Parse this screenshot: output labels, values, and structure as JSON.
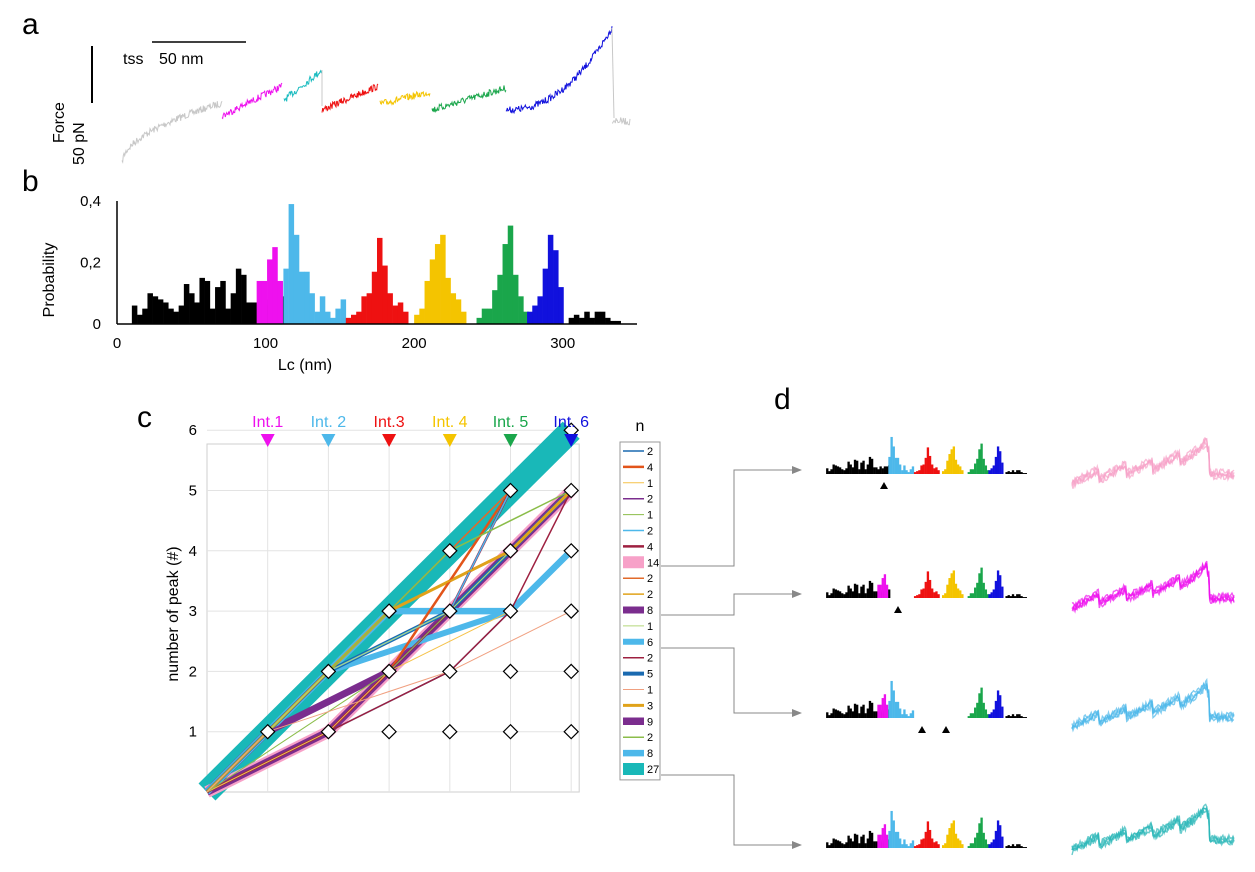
{
  "panel_labels": {
    "a": "a",
    "b": "b",
    "c": "c",
    "d": "d"
  },
  "colors": {
    "int1": "#ee11ee",
    "int2": "#4db8ea",
    "int3": "#ee1111",
    "int4": "#f4c400",
    "int5": "#1aa64b",
    "int6": "#1111dd",
    "baseline": "#000000",
    "trace_gray": "#c8c8c8",
    "teal": "#19b8b8",
    "teal_trace": "#1bbcc0",
    "pink": "#f7a1c8",
    "purple": "#7b2d8e",
    "dark_blue": "#1a6ab0",
    "gold": "#e0a21a",
    "trace_cyan": "#2bb6b8"
  },
  "panel_a": {
    "tss_label": "tss",
    "scale_x_label": "50 nm",
    "scale_y_label": "50 pN",
    "ylabel": "Force"
  },
  "chart_data": [
    {
      "type": "bar",
      "panel": "b",
      "xlabel": "Lc (nm)",
      "ylabel": "Probability",
      "xlim": [
        0,
        350
      ],
      "ylim": [
        0,
        0.4
      ],
      "xticks": [
        "0",
        "100",
        "200",
        "300"
      ],
      "yticks": [
        "0",
        "0,2",
        "0,4"
      ],
      "bin_width": 3.5,
      "segments": [
        {
          "color_key": "baseline",
          "start": 10,
          "values": [
            0.06,
            0.03,
            0.05,
            0.1,
            0.09,
            0.08,
            0.07,
            0.05,
            0.04,
            0.06,
            0.13,
            0.1,
            0.07,
            0.15,
            0.14,
            0.05,
            0.12,
            0.14,
            0.05,
            0.1,
            0.18,
            0.16,
            0.07,
            0.07,
            0.05,
            0.08,
            0.06,
            0.08,
            0.08,
            0.09
          ]
        },
        {
          "color_key": "int1",
          "start": 94,
          "values": [
            0.14,
            0.14,
            0.21,
            0.25,
            0.14
          ]
        },
        {
          "color_key": "int2",
          "start": 112,
          "values": [
            0.18,
            0.39,
            0.29,
            0.17,
            0.17,
            0.1,
            0.04,
            0.09,
            0.04,
            0.02,
            0.05,
            0.08
          ]
        },
        {
          "color_key": "int3",
          "start": 154,
          "values": [
            0.02,
            0.03,
            0.04,
            0.09,
            0.1,
            0.17,
            0.28,
            0.19,
            0.1,
            0.06,
            0.07,
            0.04
          ]
        },
        {
          "color_key": "int4",
          "start": 200,
          "values": [
            0.03,
            0.05,
            0.14,
            0.21,
            0.26,
            0.29,
            0.15,
            0.1,
            0.08,
            0.04
          ]
        },
        {
          "color_key": "int5",
          "start": 242,
          "values": [
            0.02,
            0.05,
            0.05,
            0.11,
            0.16,
            0.26,
            0.32,
            0.16,
            0.09,
            0.04
          ]
        },
        {
          "color_key": "int6",
          "start": 276,
          "values": [
            0.04,
            0.06,
            0.09,
            0.18,
            0.29,
            0.24,
            0.12
          ]
        },
        {
          "color_key": "baseline",
          "start": 304,
          "values": [
            0.02,
            0.03,
            0.02,
            0.04,
            0.02,
            0.04,
            0.04,
            0.02,
            0.01,
            0.01
          ]
        }
      ]
    },
    {
      "type": "line",
      "panel": "c",
      "ylabel": "number of peak (#)",
      "ylim": [
        0,
        6
      ],
      "yticks": [
        "1",
        "2",
        "3",
        "4",
        "5",
        "6"
      ],
      "columns": [
        "Int.1",
        "Int. 2",
        "Int.3",
        "Int. 4",
        "Int. 5",
        "Int. 6"
      ],
      "legend_title": "n",
      "series": [
        {
          "name": "2",
          "color": "#1a6ab0",
          "width": 1.5,
          "points": [
            [
              0,
              0
            ],
            [
              2,
              1
            ],
            [
              4,
              2
            ],
            [
              5,
              3
            ]
          ]
        },
        {
          "name": "4",
          "color": "#e2541a",
          "width": 2.5,
          "points": [
            [
              0,
              0
            ],
            [
              2,
              1
            ],
            [
              3,
              2
            ],
            [
              5,
              5
            ]
          ]
        },
        {
          "name": "1",
          "color": "#f5c24a",
          "width": 1,
          "points": [
            [
              0,
              0
            ],
            [
              2,
              1
            ],
            [
              3,
              2
            ],
            [
              5,
              3
            ]
          ]
        },
        {
          "name": "2",
          "color": "#7b2d8e",
          "width": 1.5,
          "points": [
            [
              0,
              0
            ],
            [
              1,
              1
            ],
            [
              3,
              2
            ],
            [
              4,
              3
            ],
            [
              5,
              5
            ]
          ]
        },
        {
          "name": "1",
          "color": "#8bbd4a",
          "width": 1,
          "points": [
            [
              0,
              0
            ],
            [
              3,
              2
            ],
            [
              4,
              3
            ],
            [
              5,
              4
            ]
          ]
        },
        {
          "name": "2",
          "color": "#4db8ea",
          "width": 1.5,
          "points": [
            [
              0,
              0
            ],
            [
              1,
              1
            ],
            [
              2,
              2
            ],
            [
              4,
              3
            ],
            [
              5,
              5
            ]
          ]
        },
        {
          "name": "4",
          "color": "#9e2040",
          "width": 2.5,
          "points": [
            [
              0,
              0
            ],
            [
              2,
              1
            ],
            [
              3,
              2
            ],
            [
              4,
              3
            ],
            [
              5,
              5
            ]
          ]
        },
        {
          "name": "14",
          "color": "#f7a1c8",
          "width": 12,
          "points": [
            [
              0,
              0
            ],
            [
              2,
              1
            ],
            [
              3,
              2
            ],
            [
              4,
              3
            ],
            [
              5,
              4
            ],
            [
              6,
              5
            ]
          ]
        },
        {
          "name": "2",
          "color": "#e26a2a",
          "width": 1.5,
          "points": [
            [
              0,
              0
            ],
            [
              1,
              1
            ],
            [
              2,
              2
            ],
            [
              4,
              4
            ],
            [
              5,
              5
            ]
          ]
        },
        {
          "name": "2",
          "color": "#e0a21a",
          "width": 1.5,
          "points": [
            [
              0,
              0
            ],
            [
              1,
              1
            ],
            [
              3,
              3
            ],
            [
              5,
              4
            ],
            [
              6,
              5
            ]
          ]
        },
        {
          "name": "8",
          "color": "#7b2d8e",
          "width": 7,
          "points": [
            [
              0,
              0
            ],
            [
              1,
              1
            ],
            [
              3,
              2
            ],
            [
              5,
              4
            ],
            [
              6,
              5
            ]
          ]
        },
        {
          "name": "1",
          "color": "#b5d67a",
          "width": 1,
          "points": [
            [
              0,
              0
            ],
            [
              2,
              2
            ],
            [
              4,
              3
            ],
            [
              5,
              4
            ]
          ]
        },
        {
          "name": "6",
          "color": "#4db8ea",
          "width": 6,
          "points": [
            [
              0,
              0
            ],
            [
              2,
              2
            ],
            [
              5,
              3
            ],
            [
              6,
              4
            ]
          ]
        },
        {
          "name": "2",
          "color": "#9e2040",
          "width": 1.5,
          "points": [
            [
              0,
              0
            ],
            [
              2,
              1
            ],
            [
              4,
              2
            ],
            [
              5,
              3
            ],
            [
              6,
              5
            ]
          ]
        },
        {
          "name": "5",
          "color": "#1a6ab0",
          "width": 4,
          "points": [
            [
              0,
              0
            ],
            [
              2,
              2
            ],
            [
              4,
              3
            ],
            [
              5,
              4
            ],
            [
              6,
              5
            ]
          ]
        },
        {
          "name": "1",
          "color": "#f0a080",
          "width": 1,
          "points": [
            [
              0,
              0
            ],
            [
              1,
              1
            ],
            [
              4,
              2
            ],
            [
              6,
              3
            ]
          ]
        },
        {
          "name": "3",
          "color": "#e0a21a",
          "width": 3,
          "points": [
            [
              0,
              0
            ],
            [
              1,
              1
            ],
            [
              3,
              3
            ],
            [
              5,
              4
            ],
            [
              6,
              5
            ]
          ]
        },
        {
          "name": "9",
          "color": "#7b2d8e",
          "width": 7.5,
          "points": [
            [
              0,
              0
            ],
            [
              2,
              1
            ],
            [
              3,
              2
            ],
            [
              5,
              4
            ],
            [
              6,
              5
            ]
          ]
        },
        {
          "name": "2",
          "color": "#8bbd4a",
          "width": 1.5,
          "points": [
            [
              0,
              0
            ],
            [
              1,
              1
            ],
            [
              3,
              3
            ],
            [
              4,
              4
            ],
            [
              6,
              5
            ]
          ]
        },
        {
          "name": "8",
          "color": "#4db8ea",
          "width": 6.5,
          "points": [
            [
              0,
              0
            ],
            [
              2,
              2
            ],
            [
              3,
              3
            ],
            [
              5,
              3
            ],
            [
              6,
              4
            ]
          ]
        },
        {
          "name": "27",
          "color": "#19b8b8",
          "width": 24,
          "points": [
            [
              0,
              0
            ],
            [
              6,
              6
            ]
          ]
        }
      ],
      "markers": [
        [
          1,
          1
        ],
        [
          2,
          2
        ],
        [
          3,
          3
        ],
        [
          4,
          4
        ],
        [
          5,
          5
        ],
        [
          6,
          6
        ],
        [
          2,
          1
        ],
        [
          3,
          2
        ],
        [
          4,
          3
        ],
        [
          5,
          4
        ],
        [
          6,
          5
        ],
        [
          3,
          1
        ],
        [
          4,
          2
        ],
        [
          5,
          3
        ],
        [
          6,
          4
        ],
        [
          4,
          1
        ],
        [
          5,
          2
        ],
        [
          6,
          3
        ],
        [
          5,
          1
        ],
        [
          6,
          2
        ],
        [
          6,
          1
        ]
      ]
    }
  ]
}
